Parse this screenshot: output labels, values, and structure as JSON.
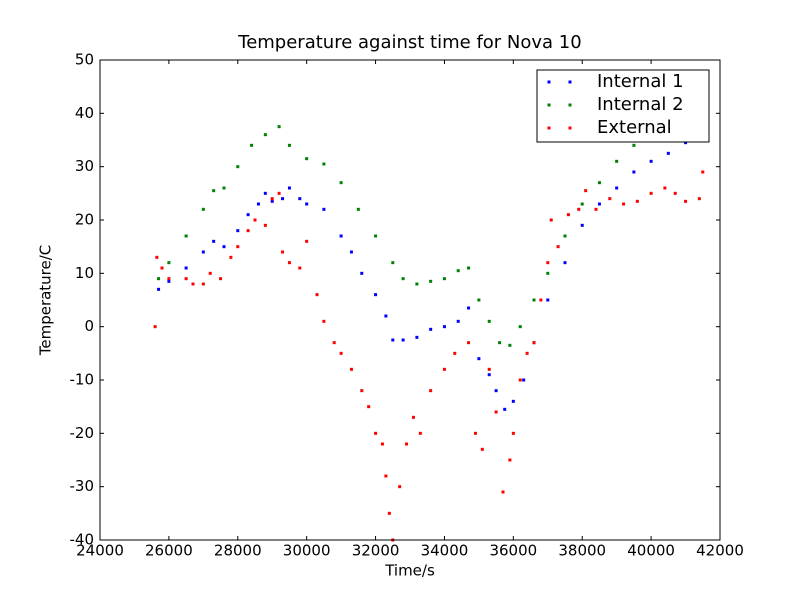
{
  "chart_data": {
    "type": "scatter",
    "title": "Temperature against time for Nova 10",
    "x_label": "Time/s",
    "y_label": "Temperature/C",
    "xlim": [
      24000,
      42000
    ],
    "ylim": [
      -40,
      50
    ],
    "xticks": [
      24000,
      26000,
      28000,
      30000,
      32000,
      34000,
      36000,
      38000,
      40000,
      42000
    ],
    "yticks": [
      -40,
      -30,
      -20,
      -10,
      0,
      10,
      20,
      30,
      40,
      50
    ],
    "legend": "upper right",
    "series": [
      {
        "name": "Internal 1",
        "color": "#0000ff",
        "x": [
          25700,
          26000,
          26500,
          27000,
          27300,
          27600,
          28000,
          28300,
          28600,
          28800,
          29000,
          29300,
          29500,
          29800,
          30000,
          30500,
          31000,
          31300,
          31600,
          32000,
          32300,
          32500,
          32800,
          33200,
          33600,
          34000,
          34400,
          34700,
          35000,
          35300,
          35500,
          35750,
          36000,
          36300,
          36600,
          37000,
          37500,
          38000,
          38500,
          39000,
          39500,
          40000,
          40500,
          41000
        ],
        "values": [
          7,
          8.5,
          11,
          14,
          16,
          15,
          18,
          21,
          23,
          25,
          23.5,
          24,
          26,
          24,
          23,
          22,
          17,
          14,
          10,
          6,
          2,
          -2.5,
          -2.5,
          -2,
          -0.5,
          0,
          1,
          3.5,
          -6,
          -9,
          -12,
          -15.5,
          -14,
          -10,
          -3,
          5,
          12,
          19,
          23,
          26,
          29,
          31,
          32.5,
          34.5
        ]
      },
      {
        "name": "Internal 2",
        "color": "#008000",
        "x": [
          25700,
          26000,
          26500,
          27000,
          27300,
          27600,
          28000,
          28400,
          28800,
          29200,
          29500,
          30000,
          30500,
          31000,
          31500,
          32000,
          32500,
          32800,
          33200,
          33600,
          34000,
          34400,
          34700,
          35000,
          35300,
          35600,
          35900,
          36200,
          36600,
          37000,
          37500,
          38000,
          38500,
          39000,
          39500,
          39800
        ],
        "values": [
          9,
          12,
          17,
          22,
          25.5,
          26,
          30,
          34,
          36,
          37.5,
          34,
          31.5,
          30.5,
          27,
          22,
          17,
          12,
          9,
          8,
          8.5,
          9,
          10.5,
          11,
          5,
          1,
          -3,
          -3.5,
          0,
          5,
          10,
          17,
          23,
          27,
          31,
          34,
          35
        ]
      },
      {
        "name": "External",
        "color": "#ff0000",
        "x": [
          25600,
          25650,
          25800,
          26000,
          26500,
          26700,
          27000,
          27200,
          27500,
          27800,
          28000,
          28300,
          28500,
          28800,
          29000,
          29200,
          29300,
          29500,
          29800,
          30000,
          30300,
          30500,
          30800,
          31000,
          31300,
          31600,
          31800,
          32000,
          32200,
          32300,
          32400,
          32500,
          32700,
          32900,
          33100,
          33300,
          33600,
          34000,
          34300,
          34700,
          34900,
          35100,
          35300,
          35500,
          35700,
          35900,
          36000,
          36200,
          36400,
          36600,
          36800,
          37000,
          37100,
          37300,
          37600,
          37900,
          38100,
          38400,
          38800,
          39200,
          39600,
          40000,
          40400,
          40700,
          41000,
          41400,
          41500
        ],
        "values": [
          0,
          13,
          11,
          9,
          9,
          8,
          8,
          10,
          9,
          13,
          15,
          18,
          20,
          19,
          24,
          25,
          14,
          12,
          11,
          16,
          6,
          1,
          -3,
          -5,
          -8,
          -12,
          -15,
          -20,
          -22,
          -28,
          -35,
          -40,
          -30,
          -22,
          -17,
          -20,
          -12,
          -8,
          -5,
          -3,
          -20,
          -23,
          -8,
          -16,
          -31,
          -25,
          -20,
          -10,
          -5,
          -3,
          5,
          12,
          20,
          15,
          21,
          22,
          25.5,
          22,
          24,
          23,
          23.5,
          25,
          26,
          25,
          23.5,
          24,
          29
        ]
      }
    ]
  }
}
